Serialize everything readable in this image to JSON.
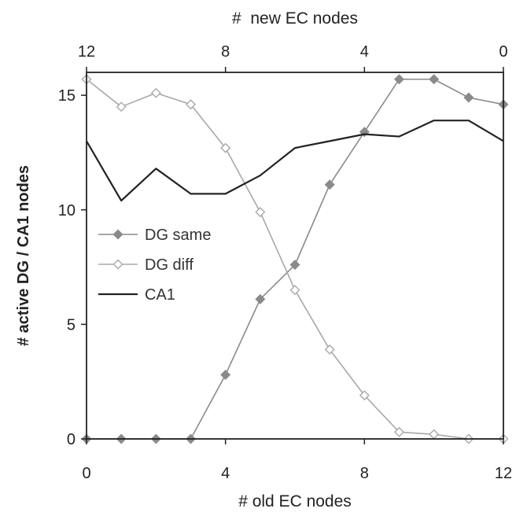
{
  "chart_data": {
    "type": "line",
    "title": "",
    "xlabel": "# old EC nodes",
    "x2label": "#  new EC nodes",
    "ylabel": "# active DG / CA1 nodes",
    "xlim": [
      0,
      12
    ],
    "ylim": [
      0,
      16
    ],
    "xticks": [
      "0",
      "4",
      "8",
      "12"
    ],
    "x2ticks": [
      "12",
      "8",
      "4",
      "0"
    ],
    "yticks": [
      "0",
      "5",
      "10",
      "15"
    ],
    "grid": false,
    "legend_position": "center-left",
    "x": [
      0,
      1,
      2,
      3,
      4,
      5,
      6,
      7,
      8,
      9,
      10,
      11,
      12
    ],
    "series": [
      {
        "name": "DG same",
        "marker": "filled-diamond",
        "color": "#8a8a8a",
        "values": [
          0,
          0,
          0,
          0,
          2.8,
          6.1,
          7.6,
          11.1,
          13.4,
          15.7,
          15.7,
          14.9,
          14.6
        ]
      },
      {
        "name": "DG diff",
        "marker": "open-diamond",
        "color": "#a8a8a8",
        "values": [
          15.7,
          14.5,
          15.1,
          14.6,
          12.7,
          9.9,
          6.5,
          3.9,
          1.9,
          0.3,
          0.2,
          0,
          0
        ]
      },
      {
        "name": "CA1",
        "marker": "none",
        "color": "#222222",
        "values": [
          13.0,
          10.4,
          11.8,
          10.7,
          10.7,
          11.5,
          12.7,
          13.0,
          13.3,
          13.2,
          13.9,
          13.9,
          13.0
        ]
      }
    ]
  }
}
